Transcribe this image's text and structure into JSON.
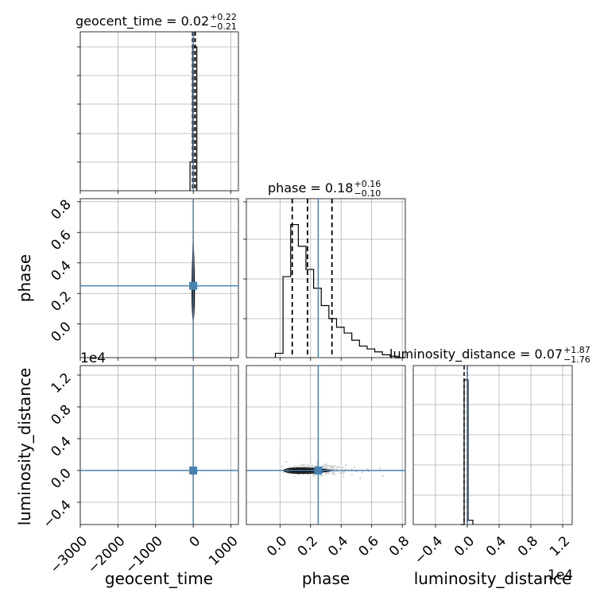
{
  "chart_data": {
    "type": "corner",
    "truth_color": "#4682b4",
    "params": [
      "geocent_time",
      "phase",
      "luminosity_distance"
    ],
    "titles": [
      {
        "param": "geocent_time",
        "prefix": "geocent_time = ",
        "median": "0.02",
        "plus": "+0.22",
        "minus": "−0.21"
      },
      {
        "param": "phase",
        "prefix": "phase = ",
        "median": "0.18",
        "plus": "+0.16",
        "minus": "−0.10"
      },
      {
        "param": "luminosity_distance",
        "prefix": "luminosity_distance = ",
        "median": "0.07",
        "plus": "+1.87",
        "minus": "−1.76"
      }
    ],
    "axes": {
      "geocent_time": {
        "range": [
          -3000,
          1200
        ],
        "ticks": [
          -3000,
          -2000,
          -1000,
          0,
          1000
        ],
        "tick_labels": [
          "−3000",
          "−2000",
          "−1000",
          "0",
          "1000"
        ],
        "label": "geocent_time",
        "truth": 0
      },
      "phase": {
        "range": [
          -0.22,
          0.82
        ],
        "ticks": [
          0.0,
          0.2,
          0.4,
          0.6,
          0.8
        ],
        "tick_labels": [
          "0.0",
          "0.2",
          "0.4",
          "0.6",
          "0.8"
        ],
        "label": "phase",
        "truth": 0.25
      },
      "luminosity_distance": {
        "range": [
          -0.68,
          1.32
        ],
        "ticks": [
          -0.4,
          0.0,
          0.4,
          0.8,
          1.2
        ],
        "tick_labels": [
          "−0.4",
          "0.0",
          "0.4",
          "0.8",
          "1.2"
        ],
        "label": "luminosity_distance",
        "truth": 0.0,
        "scale_label": "1e4"
      }
    },
    "hist_geocent_time": {
      "bins": [
        -85,
        -15,
        45,
        95
      ],
      "heights": [
        0.2,
        1.0,
        1.0
      ],
      "quantiles": [
        -20,
        15,
        55
      ]
    },
    "hist_phase": {
      "bin_edges": [
        -0.03,
        0.02,
        0.07,
        0.12,
        0.17,
        0.22,
        0.27,
        0.32,
        0.37,
        0.42,
        0.47,
        0.52,
        0.57,
        0.62,
        0.67,
        0.72,
        0.77,
        0.82
      ],
      "heights": [
        0.03,
        0.56,
        0.92,
        0.77,
        0.61,
        0.48,
        0.36,
        0.27,
        0.21,
        0.17,
        0.12,
        0.08,
        0.06,
        0.04,
        0.02,
        0.01,
        0.0
      ],
      "quantiles": [
        0.08,
        0.18,
        0.34
      ]
    },
    "hist_luminosity_distance": {
      "bins": [
        -0.08,
        -0.04,
        -0.01,
        0.01,
        0.07
      ],
      "heights": [
        0.0,
        1.0,
        1.0,
        0.03
      ],
      "quantiles": [
        -0.04,
        0.0
      ]
    },
    "y_ticks_geocent_hist": 5,
    "y_ticks_phase_hist": 4,
    "y_ticks_ld_hist": 0
  }
}
